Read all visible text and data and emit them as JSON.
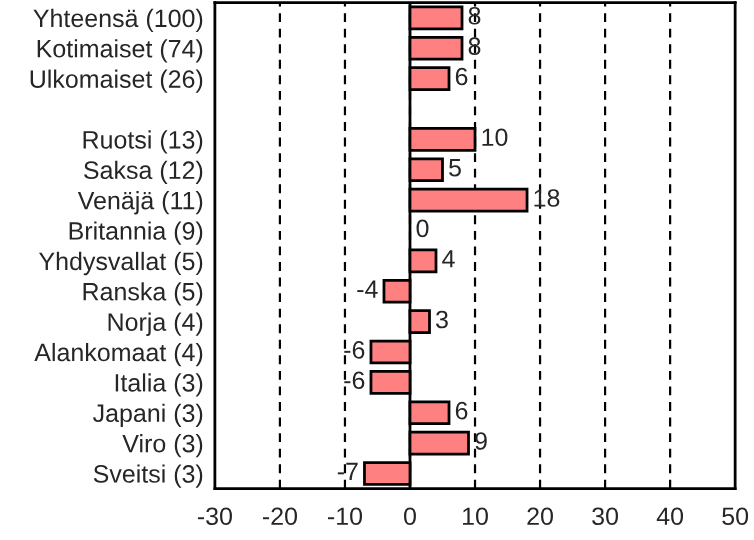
{
  "chart_data": {
    "type": "bar",
    "orientation": "horizontal",
    "categories": [
      "Yhteensä (100)",
      "Kotimaiset (74)",
      "Ulkomaiset (26)",
      null,
      "Ruotsi (13)",
      "Saksa (12)",
      "Venäjä (11)",
      "Britannia (9)",
      "Yhdysvallat (5)",
      "Ranska (5)",
      "Norja (4)",
      "Alankomaat (4)",
      "Italia (3)",
      "Japani (3)",
      "Viro (3)",
      "Sveitsi (3)"
    ],
    "values": [
      8,
      8,
      6,
      null,
      10,
      5,
      18,
      0,
      4,
      -4,
      3,
      -6,
      -6,
      6,
      9,
      -7
    ],
    "color": "#ff8080",
    "xlim": [
      -30,
      50
    ],
    "xticks": [
      -30,
      -20,
      -10,
      0,
      10,
      20,
      30,
      40,
      50
    ],
    "grid": "x",
    "data_labels": true,
    "ref_lines": [
      {
        "axis": "x",
        "value": 0,
        "color": "#000000"
      }
    ]
  }
}
